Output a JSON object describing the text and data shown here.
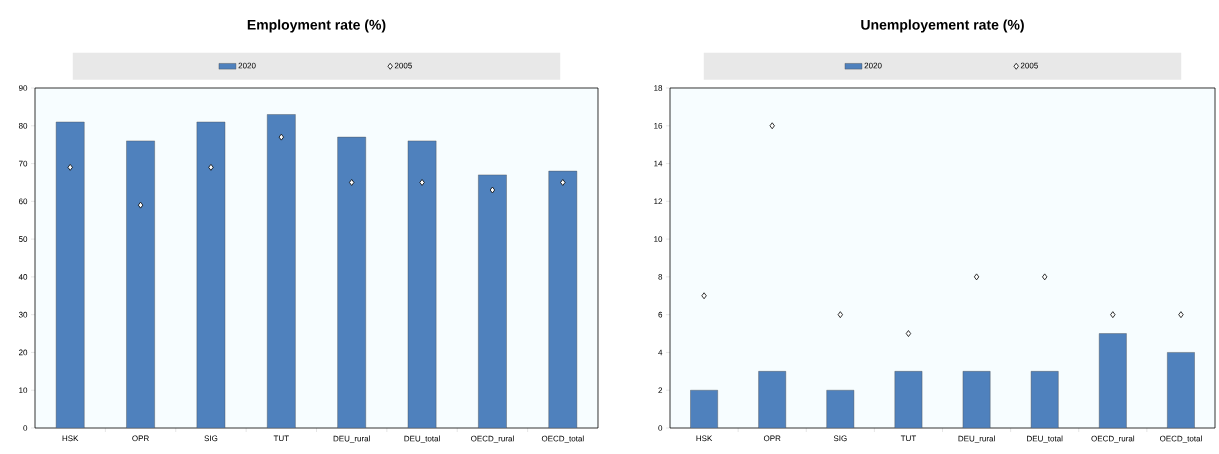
{
  "chart_data": [
    {
      "type": "bar",
      "title": "Employment rate (%)",
      "categories": [
        "HSK",
        "OPR",
        "SIG",
        "TUT",
        "DEU_rural",
        "DEU_total",
        "OECD_rural",
        "OECD_total"
      ],
      "series": [
        {
          "name": "2020",
          "color": "#4f81bd",
          "values": [
            81,
            76,
            81,
            83,
            77,
            76,
            67,
            68
          ]
        },
        {
          "name": "2005",
          "type": "scatter",
          "marker": "diamond",
          "color": "#ffffff",
          "values": [
            69,
            59,
            69,
            77,
            65,
            65,
            63,
            65
          ]
        }
      ],
      "ylim": [
        0,
        90
      ],
      "yticks": [
        0,
        10,
        20,
        30,
        40,
        50,
        60,
        70,
        80,
        90
      ],
      "legend": "top"
    },
    {
      "type": "bar",
      "title": "Unemployement rate (%)",
      "categories": [
        "HSK",
        "OPR",
        "SIG",
        "TUT",
        "DEU_rural",
        "DEU_total",
        "OECD_rural",
        "OECD_total"
      ],
      "series": [
        {
          "name": "2020",
          "color": "#4f81bd",
          "values": [
            2,
            3,
            2,
            3,
            3,
            3,
            5,
            4
          ]
        },
        {
          "name": "2005",
          "type": "scatter",
          "marker": "diamond",
          "color": "#ffffff",
          "values": [
            7,
            16,
            6,
            5,
            8,
            8,
            6,
            6
          ]
        }
      ],
      "ylim": [
        0,
        18
      ],
      "yticks": [
        0,
        2,
        4,
        6,
        8,
        10,
        12,
        14,
        16,
        18
      ],
      "legend": "top"
    }
  ]
}
